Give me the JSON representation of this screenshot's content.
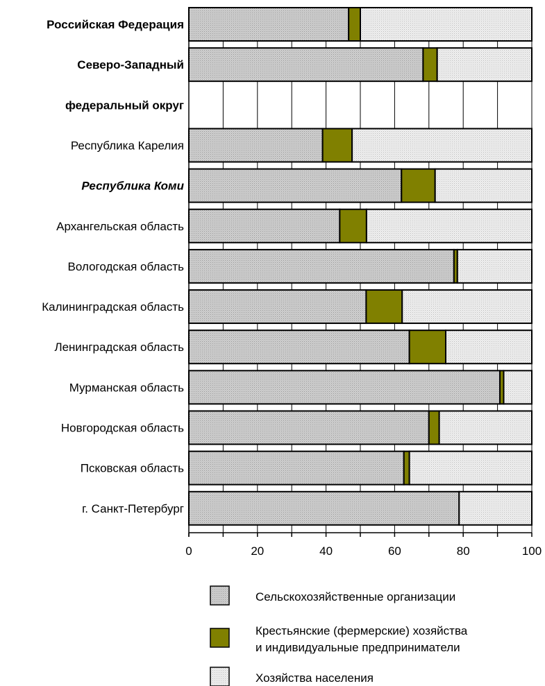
{
  "chart_data": {
    "type": "bar",
    "orientation": "horizontal",
    "stacked": true,
    "categories": [
      {
        "label": "Российская Федерация",
        "style": "bold"
      },
      {
        "label": "Северо-Западный",
        "style": "bold"
      },
      {
        "label": "федеральный округ",
        "style": "bold"
      },
      {
        "label": "Республика Карелия",
        "style": "normal"
      },
      {
        "label": "Республика Коми",
        "style": "bold-italic"
      },
      {
        "label": "Архангельская область",
        "style": "normal"
      },
      {
        "label": "Вологодская область",
        "style": "normal"
      },
      {
        "label": "Калининградская область",
        "style": "normal"
      },
      {
        "label": "Ленинградская область",
        "style": "normal"
      },
      {
        "label": "Мурманская область",
        "style": "normal"
      },
      {
        "label": "Новгородская область",
        "style": "normal"
      },
      {
        "label": "Псковская область",
        "style": "normal"
      },
      {
        "label": "г. Санкт-Петербург",
        "style": "normal"
      }
    ],
    "series": [
      {
        "name": "Сельскохозяйственные организации",
        "color": "#cccccc",
        "values": [
          46.6,
          68.3,
          null,
          39.0,
          62.0,
          44.0,
          77.3,
          51.7,
          64.3,
          90.7,
          70.0,
          62.7,
          78.8
        ]
      },
      {
        "name_lines": [
          "Крестьянские (фермерские) хозяйства",
          "и индивидуальные предприниматели"
        ],
        "color": "#808000",
        "values": [
          3.4,
          4.1,
          null,
          8.6,
          9.8,
          7.8,
          1.0,
          10.5,
          10.6,
          1.1,
          3.0,
          1.6,
          0.0
        ]
      },
      {
        "name": "Хозяйства населения",
        "color": "#ececec",
        "values": [
          50.0,
          27.6,
          null,
          52.4,
          28.2,
          48.2,
          21.7,
          37.8,
          25.1,
          8.2,
          27.0,
          35.7,
          21.2
        ]
      }
    ],
    "xlim": [
      0,
      100
    ],
    "xticks": [
      0,
      20,
      40,
      60,
      80,
      100
    ],
    "grid": true,
    "legend_position": "bottom"
  }
}
